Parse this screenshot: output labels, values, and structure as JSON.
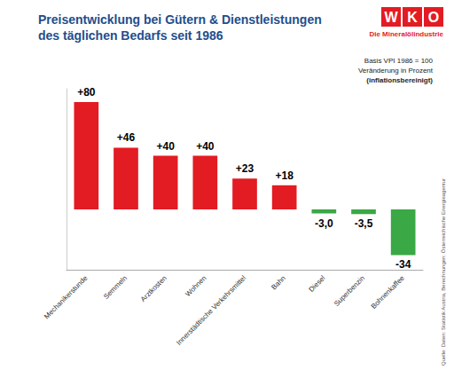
{
  "chart_data": {
    "type": "bar",
    "title": "Preisentwicklung bei Gütern & Dienstleistungen des täglichen Bedarfs seit 1986",
    "logo": {
      "text": "WKO",
      "subtitle": "Die Mineralölindustrie"
    },
    "annotations": {
      "note": [
        "Basis VPI 1986 = 100",
        "Veränderung in Prozent",
        "(inflationsbereinigt)"
      ],
      "source": "Quelle: Daten: Statistik Austria, Berechnungen: Österreichische Energieagentur"
    },
    "categories": [
      "Mechanikerstunde",
      "Semmeln",
      "Arztkosten",
      "Wohnen",
      "Innerstädtische Verkehrsmittel",
      "Bahn",
      "Diesel",
      "Superbenzin",
      "Bohnenkaffee"
    ],
    "values": [
      80,
      46,
      40,
      40,
      23,
      18,
      -3.0,
      -3.5,
      -34
    ],
    "value_labels": [
      "+80",
      "+46",
      "+40",
      "+40",
      "+23",
      "+18",
      "-3,0",
      "-3,5",
      "-34"
    ],
    "colors": [
      "#e31b23",
      "#e31b23",
      "#e31b23",
      "#e31b23",
      "#e31b23",
      "#e31b23",
      "#3aa845",
      "#3aa845",
      "#3aa845"
    ],
    "ylim": [
      -45,
      90
    ],
    "data_labels": true,
    "tick_labels": "x",
    "grid": false
  }
}
